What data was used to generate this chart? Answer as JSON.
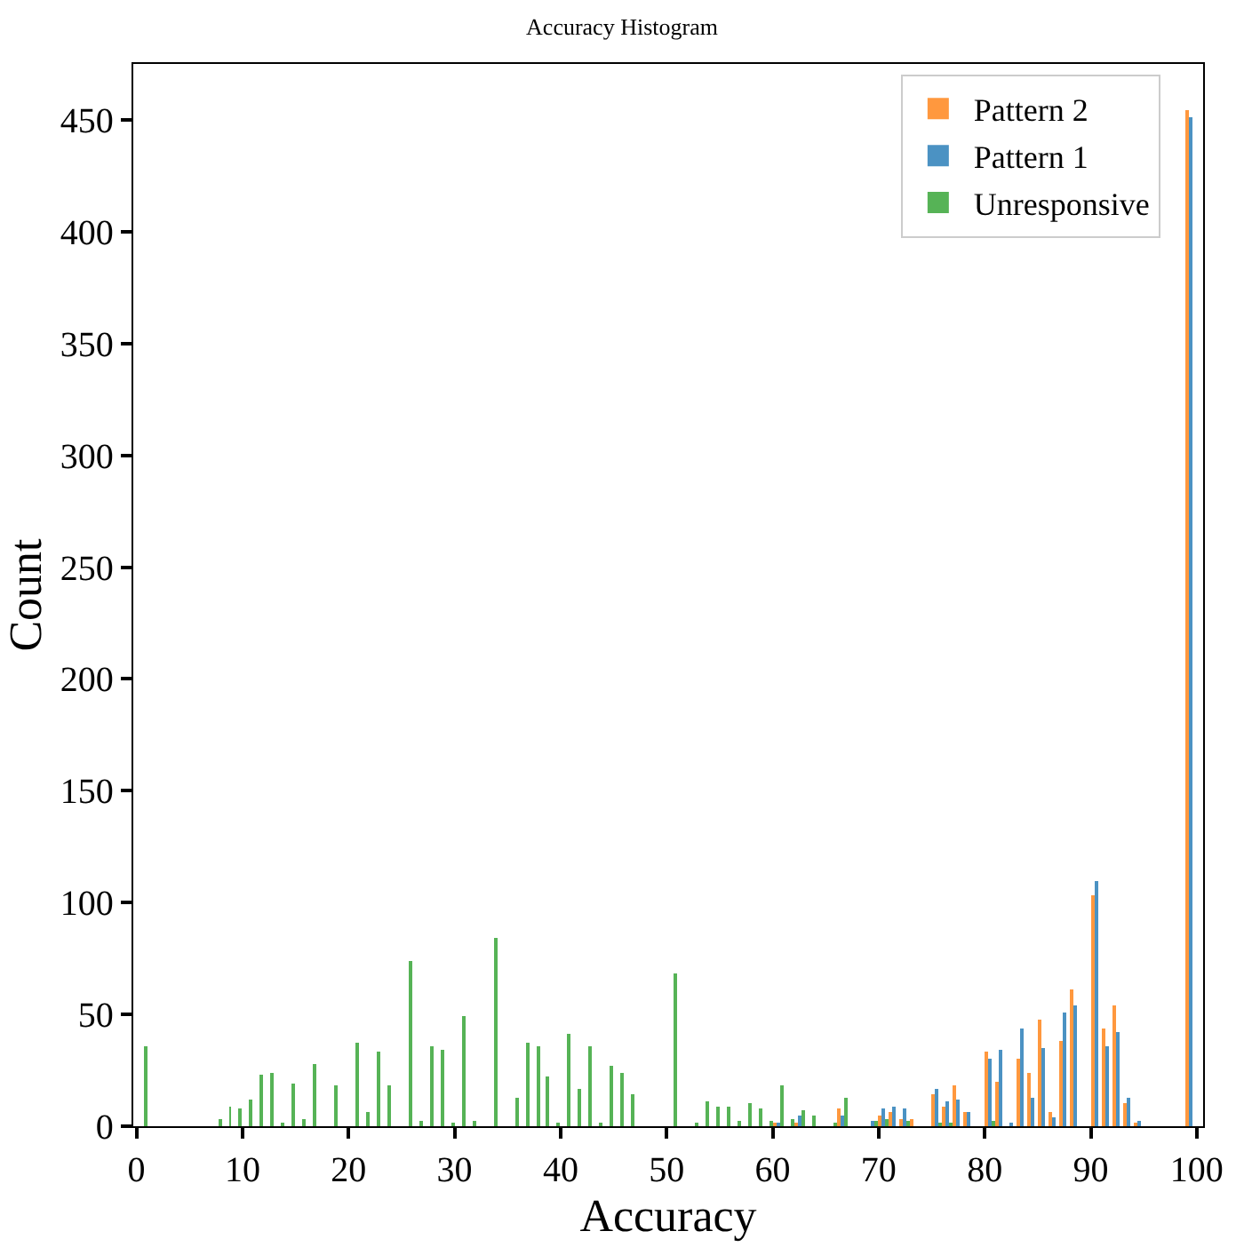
{
  "chart_data": {
    "type": "histogram",
    "title": "Accuracy Histogram",
    "xlabel": "Accuracy",
    "ylabel": "Count",
    "bins": [
      0,
      1,
      2,
      3,
      4,
      5,
      6,
      7,
      8,
      9,
      10,
      11,
      12,
      13,
      14,
      15,
      16,
      17,
      18,
      19,
      20,
      21,
      22,
      23,
      24,
      25,
      26,
      27,
      28,
      29,
      30,
      31,
      32,
      33,
      34,
      35,
      36,
      37,
      38,
      39,
      40,
      41,
      42,
      43,
      44,
      45,
      46,
      47,
      48,
      49,
      50,
      51,
      52,
      53,
      54,
      55,
      56,
      57,
      58,
      59,
      60,
      61,
      62,
      63,
      64,
      65,
      66,
      67,
      68,
      69,
      70,
      71,
      72,
      73,
      74,
      75,
      76,
      77,
      78,
      79,
      80,
      81,
      82,
      83,
      84,
      85,
      86,
      87,
      88,
      89,
      90,
      91,
      92,
      93,
      94,
      95,
      96,
      97,
      98,
      99,
      100
    ],
    "series": [
      {
        "name": "Pattern 2",
        "color": "#ff983e",
        "values": [
          0,
          0,
          0,
          0,
          0,
          0,
          0,
          0,
          0,
          0,
          0,
          0,
          0,
          0,
          0,
          0,
          0,
          0,
          0,
          0,
          0,
          0,
          0,
          0,
          0,
          0,
          0,
          0,
          0,
          0,
          0,
          0,
          0,
          0,
          0,
          0,
          0,
          0,
          0,
          0,
          0,
          0,
          0,
          0,
          0,
          0,
          0,
          0,
          0,
          0,
          0,
          0,
          0,
          0,
          0,
          0,
          0,
          0,
          0,
          0,
          1,
          0,
          1,
          0,
          0,
          0,
          8,
          0,
          0,
          0,
          5,
          6,
          3,
          3,
          0,
          14,
          9,
          18,
          6,
          0,
          33,
          20,
          0,
          30,
          24,
          48,
          6,
          38,
          61,
          0,
          103,
          44,
          54,
          10,
          1,
          0,
          0,
          0,
          0,
          454
        ]
      },
      {
        "name": "Pattern 1",
        "color": "#4b92c3",
        "values": [
          0,
          0,
          0,
          0,
          0,
          0,
          0,
          0,
          0,
          0,
          0,
          0,
          0,
          0,
          0,
          0,
          0,
          0,
          0,
          0,
          0,
          0,
          0,
          0,
          0,
          0,
          0,
          0,
          0,
          0,
          0,
          0,
          0,
          0,
          0,
          0,
          0,
          0,
          0,
          0,
          0,
          0,
          0,
          0,
          0,
          0,
          0,
          0,
          0,
          0,
          0,
          0,
          0,
          0,
          0,
          0,
          0,
          0,
          0,
          0,
          1,
          0,
          5,
          0,
          0,
          0,
          5,
          0,
          0,
          2,
          8,
          9,
          8,
          0,
          0,
          17,
          11,
          12,
          6,
          0,
          30,
          34,
          1,
          44,
          13,
          35,
          4,
          51,
          54,
          0,
          110,
          36,
          42,
          13,
          2,
          0,
          0,
          0,
          0,
          451
        ]
      },
      {
        "name": "Unresponsive",
        "color": "#56b356",
        "values": [
          36,
          0,
          0,
          0,
          0,
          0,
          0,
          3,
          9,
          8,
          12,
          23,
          24,
          1,
          19,
          3,
          28,
          0,
          18,
          0,
          37,
          6,
          33,
          18,
          0,
          74,
          2,
          36,
          34,
          1,
          49,
          2,
          0,
          84,
          0,
          13,
          37,
          36,
          22,
          1,
          41,
          17,
          36,
          1,
          27,
          24,
          14,
          0,
          0,
          0,
          68,
          0,
          1,
          11,
          9,
          9,
          2,
          10,
          8,
          2,
          18,
          3,
          7,
          5,
          0,
          1,
          13,
          0,
          0,
          2,
          3,
          0,
          2,
          0,
          0,
          1,
          1,
          0,
          0,
          0,
          2,
          0,
          0,
          0,
          0,
          0,
          0,
          0,
          0,
          0,
          0,
          0,
          0,
          0,
          0,
          0,
          0,
          0,
          0,
          0
        ]
      }
    ],
    "xlim": [
      -0.3,
      100.6
    ],
    "xticks": [
      0,
      10,
      20,
      30,
      40,
      50,
      60,
      70,
      80,
      90,
      100
    ],
    "ylim": [
      0,
      475
    ],
    "yticks": [
      0,
      50,
      100,
      150,
      200,
      250,
      300,
      350,
      400,
      450
    ],
    "legend": "top right"
  }
}
